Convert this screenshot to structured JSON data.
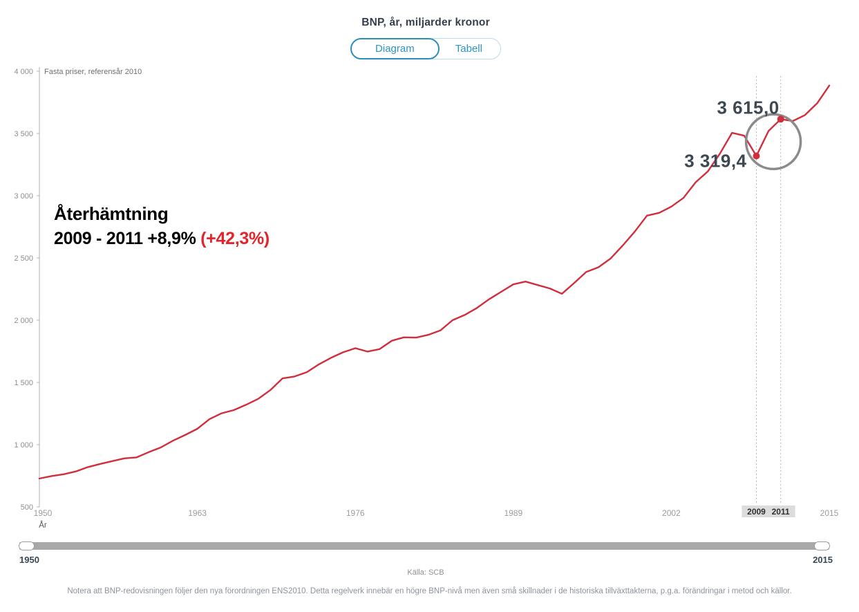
{
  "header": {
    "title": "BNP, år, miljarder kronor"
  },
  "tabs": [
    {
      "label": "Diagram",
      "active": true
    },
    {
      "label": "Tabell",
      "active": false
    }
  ],
  "chart_data": {
    "type": "line",
    "title": "BNP, år, miljarder kronor",
    "subtitle": "Fasta priser, referensår 2010",
    "xlabel": "År",
    "ylabel": "",
    "x_range": [
      1950,
      2015
    ],
    "ylim": [
      500,
      4000
    ],
    "grid": false,
    "legend": false,
    "y_ticks": [
      {
        "v": 4000,
        "label": "4 000"
      },
      {
        "v": 3500,
        "label": "3 500"
      },
      {
        "v": 3000,
        "label": "3 000"
      },
      {
        "v": 2500,
        "label": "2 500"
      },
      {
        "v": 2000,
        "label": "2 000"
      },
      {
        "v": 1500,
        "label": "1 500"
      },
      {
        "v": 1000,
        "label": "1 000"
      },
      {
        "v": 500,
        "label": "500"
      }
    ],
    "x_ticks": [
      {
        "v": 1950,
        "label": "1950"
      },
      {
        "v": 1963,
        "label": "1963"
      },
      {
        "v": 1976,
        "label": "1976"
      },
      {
        "v": 1989,
        "label": "1989"
      },
      {
        "v": 2002,
        "label": "2002"
      },
      {
        "v": 2015,
        "label": "2015"
      }
    ],
    "highlighted_x_ticks": [
      {
        "v": 2009,
        "label": "2009"
      },
      {
        "v": 2011,
        "label": "2011"
      }
    ],
    "x": [
      1950,
      1951,
      1952,
      1953,
      1954,
      1955,
      1956,
      1957,
      1958,
      1959,
      1960,
      1961,
      1962,
      1963,
      1964,
      1965,
      1966,
      1967,
      1968,
      1969,
      1970,
      1971,
      1972,
      1973,
      1974,
      1975,
      1976,
      1977,
      1978,
      1979,
      1980,
      1981,
      1982,
      1983,
      1984,
      1985,
      1986,
      1987,
      1988,
      1989,
      1990,
      1991,
      1992,
      1993,
      1994,
      1995,
      1996,
      1997,
      1998,
      1999,
      2000,
      2001,
      2002,
      2003,
      2004,
      2005,
      2006,
      2007,
      2008,
      2009,
      2010,
      2011,
      2012,
      2013,
      2014,
      2015
    ],
    "series": [
      {
        "name": "BNP, fasta priser",
        "color": "#d02e3d",
        "values": [
          728,
          748,
          762,
          785,
          820,
          845,
          868,
          890,
          898,
          940,
          978,
          1032,
          1078,
          1128,
          1205,
          1252,
          1278,
          1320,
          1368,
          1438,
          1532,
          1548,
          1582,
          1645,
          1698,
          1742,
          1775,
          1748,
          1768,
          1835,
          1862,
          1860,
          1882,
          1918,
          2000,
          2042,
          2098,
          2168,
          2228,
          2288,
          2310,
          2282,
          2255,
          2212,
          2298,
          2388,
          2425,
          2495,
          2600,
          2712,
          2840,
          2862,
          2912,
          2982,
          3108,
          3195,
          3338,
          3505,
          3482,
          3319.4,
          3520,
          3615.0,
          3600,
          3648,
          3742,
          3885
        ]
      }
    ],
    "markers": [
      {
        "x": 2009,
        "y": 3319.4,
        "label": "3 319,4"
      },
      {
        "x": 2011,
        "y": 3615.0,
        "label": "3 615,0"
      }
    ]
  },
  "annotation": {
    "line1": "Återhämtning",
    "line2_black": "2009 - 2011 +8,9% ",
    "line2_red": "(+42,3%)"
  },
  "slider": {
    "min_label": "1950",
    "max_label": "2015"
  },
  "footer": {
    "source": "Källa: SCB",
    "note": "Notera att BNP-redovisningen följer den nya förordningen ENS2010. Detta regelverk innebär en högre BNP-nivå men även små skillnader i de historiska tillväxttakterna, p.g.a. förändringar i metod och källor."
  },
  "colors": {
    "line": "#d02e3d",
    "accent_blue": "#2c95c2",
    "dark_value_label": "#3e4852",
    "annotation_red": "#e4232b",
    "highlight_circle": "#8b8b8b",
    "tick_gray": "#9b9b9b"
  }
}
